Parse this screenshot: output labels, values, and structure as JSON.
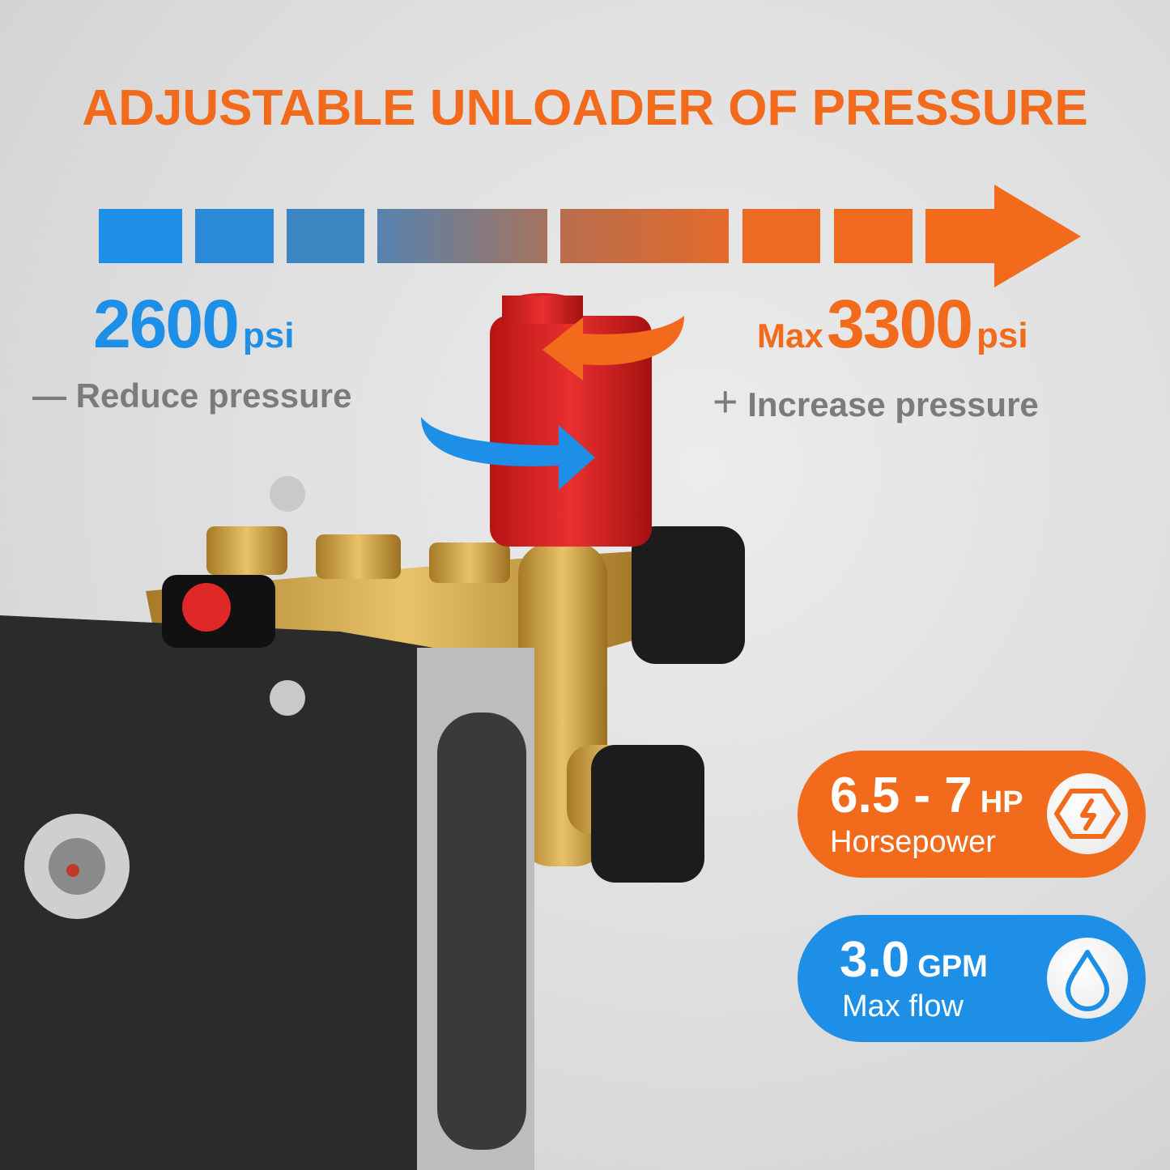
{
  "title": "ADJUSTABLE UNLOADER OF PRESSURE",
  "pressure_scale": {
    "min": {
      "value": "2600",
      "unit": "psi",
      "label": "Reduce pressure",
      "sign": "—"
    },
    "max": {
      "prefix": "Max",
      "value": "3300",
      "unit": "psi",
      "label": "Increase pressure",
      "sign": "+"
    },
    "colors": {
      "low": "#1e8fe6",
      "high": "#f26a1b"
    }
  },
  "specs": [
    {
      "value": "6.5 - 7",
      "unit": "HP",
      "label": "Horsepower",
      "icon": "lightning-hexagon-icon",
      "color": "#f26a1b"
    },
    {
      "value": "3.0",
      "unit": "GPM",
      "label": "Max flow",
      "icon": "water-drop-icon",
      "color": "#1e8fe6"
    }
  ]
}
